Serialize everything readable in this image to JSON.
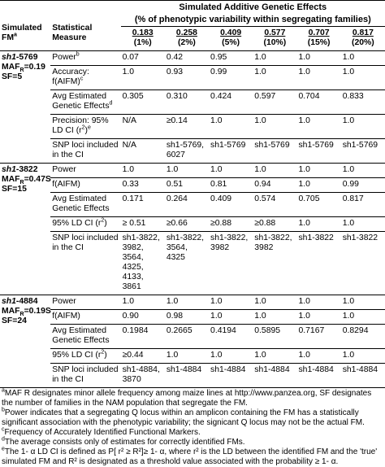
{
  "header": {
    "title": "Simulated Additive Genetic Effects",
    "subtitle": "(% of phenotypic variability within segregating families)",
    "col1_line1": "Simulated",
    "col1_line2": "FM",
    "col1_sup": "a",
    "col2_line1": "Statistical",
    "col2_line2": "Measure",
    "effects": [
      {
        "value": "0.183",
        "pct": "(1%)"
      },
      {
        "value": "0.258",
        "pct": "(2%)"
      },
      {
        "value": "0.409",
        "pct": "(5%)"
      },
      {
        "value": "0.577",
        "pct": "(10%)"
      },
      {
        "value": "0.707",
        "pct": "(15%)"
      },
      {
        "value": "0.817",
        "pct": "(20%)"
      }
    ]
  },
  "sections": [
    {
      "fm_name_italic": "sh1",
      "fm_name_rest": "-5769",
      "maf": "MAF",
      "maf_sub": "R",
      "maf_val": "=0.19",
      "sf": "SF=5",
      "rows": [
        {
          "measure": "Power",
          "sup": "b",
          "values": [
            "0.07",
            "0.42",
            "0.95",
            "1.0",
            "1.0",
            "1.0"
          ]
        },
        {
          "measure": "Accuracy: f(AIFM)",
          "sup": "c",
          "values": [
            "1.0",
            "0.93",
            "0.99",
            "1.0",
            "1.0",
            "1.0"
          ]
        },
        {
          "measure": "Avg Estimated Genetic Effects",
          "sup": "d",
          "values": [
            "0.305",
            "0.310",
            "0.424",
            "0.597",
            "0.704",
            "0.833"
          ]
        },
        {
          "measure": "Precision: 95% LD CI (r",
          "sup": "e",
          "values": [
            "N/A",
            "≥0.14",
            "1.0",
            "1.0",
            "1.0",
            "1.0"
          ]
        },
        {
          "measure": "SNP loci included in the CI",
          "values": [
            "N/A",
            "sh1-5769, 6027",
            "sh1-5769",
            "sh1-5769",
            "sh1-5769",
            "sh1-5769"
          ]
        }
      ]
    },
    {
      "fm_name_italic": "sh1",
      "fm_name_rest": "-3822",
      "maf": "MAF",
      "maf_sub": "R",
      "maf_val": "=0.47S",
      "sf": "SF=15",
      "rows": [
        {
          "measure": "Power",
          "values": [
            "1.0",
            "1.0",
            "1.0",
            "1.0",
            "1.0",
            "1.0"
          ]
        },
        {
          "measure": "f(AIFM)",
          "values": [
            "0.33",
            "0.51",
            "0.81",
            "0.94",
            "1.0",
            "0.99"
          ]
        },
        {
          "measure": "Avg Estimated Genetic Effects",
          "values": [
            "0.171",
            "0.264",
            "0.409",
            "0.574",
            "0.705",
            "0.817"
          ]
        },
        {
          "measure": "95% LD CI (r",
          "values": [
            "≥ 0.51",
            "≥0.66",
            "≥0.88",
            "≥0.88",
            "1.0",
            "1.0"
          ]
        },
        {
          "measure": "SNP loci included in the CI",
          "values": [
            "sh1-3822, 3982, 3564, 4325, 4133, 3861",
            "sh1-3822, 3564, 4325",
            "sh1-3822, 3982",
            "sh1-3822, 3982",
            "sh1-3822",
            "sh1-3822"
          ]
        }
      ]
    },
    {
      "fm_name_italic": "sh1",
      "fm_name_rest": "-4884",
      "maf": "MAF",
      "maf_sub": "R",
      "maf_val": "=0.19S",
      "sf": "SF=24",
      "rows": [
        {
          "measure": "Power",
          "values": [
            "1.0",
            "1.0",
            "1.0",
            "1.0",
            "1.0",
            "1.0"
          ]
        },
        {
          "measure": "f(AIFM)",
          "values": [
            "0.90",
            "0.98",
            "1.0",
            "1.0",
            "1.0",
            "1.0"
          ]
        },
        {
          "measure": "Avg Estimated Genetic Effects",
          "values": [
            "0.1984",
            "0.2665",
            "0.4194",
            "0.5895",
            "0.7167",
            "0.8294"
          ]
        },
        {
          "measure": "95% LD CI (r",
          "values": [
            "≥0.44",
            "1.0",
            "1.0",
            "1.0",
            "1.0",
            "1.0"
          ]
        },
        {
          "measure": "SNP loci included in the CI",
          "values": [
            "sh1-4884, 3870",
            "sh1-4884",
            "sh1-4884",
            "sh1-4884",
            "sh1-4884",
            "sh1-4884"
          ]
        }
      ]
    }
  ],
  "footnotes": [
    {
      "mark": "a",
      "text": "MAF R designates minor allele frequency among maize lines at http://www.panzea.org, SF designates the number of families in the NAM population that segregate the FM."
    },
    {
      "mark": "b",
      "text": "Power indicates that a segregating Q locus within an amplicon containing the FM has a statistically significant association with the phenotypic variability; the signicant Q locus may not be the actual FM."
    },
    {
      "mark": "c",
      "text": "Frequency of Accurately Identified Functional Markers."
    },
    {
      "mark": "d",
      "text": "The average consists only of estimates for correctly identified FMs."
    },
    {
      "mark": "e",
      "text": "The 1- α LD CI is defined as P[ r² ≥ R²]≥ 1- α, where r² is the LD between the identified FM and the 'true' simulated FM and R² is designated as a threshold value associated with the probability ≥ 1- α."
    }
  ]
}
